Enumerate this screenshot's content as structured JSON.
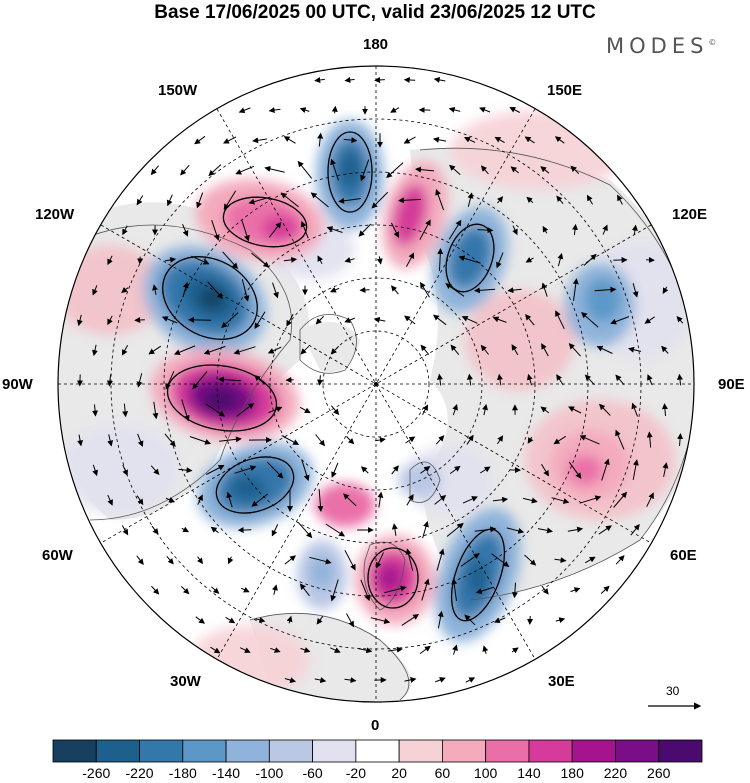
{
  "header": {
    "title": "Base 17/06/2025 00 UTC, valid 23/06/2025 12 UTC",
    "brand": "MODES",
    "brand_mark": "©"
  },
  "map": {
    "projection": "north polar stereographic",
    "longitude_labels": {
      "top": "180",
      "top_left": "150W",
      "top_right": "150E",
      "upper_left": "120W",
      "upper_right": "120E",
      "left": "90W",
      "right": "90E",
      "lower_left": "60W",
      "lower_right": "60E",
      "bottom_left": "30W",
      "bottom_right": "30E",
      "bottom": "0"
    },
    "vector_reference": {
      "value": "30"
    },
    "colors": {
      "land": "#e8e8e8",
      "negative_strong": "#1c4f7a",
      "positive_strong": "#4b0a6e"
    }
  },
  "colorbar": {
    "labels": [
      "-260",
      "-220",
      "-180",
      "-140",
      "-100",
      "-60",
      "-20",
      "20",
      "60",
      "100",
      "140",
      "180",
      "220",
      "260"
    ],
    "colors": [
      "#173f5f",
      "#1d5f8d",
      "#3477ab",
      "#5b98c8",
      "#8fb3da",
      "#bac8e5",
      "#e1e1f0",
      "#ffffff",
      "#f6d2d6",
      "#f3abbd",
      "#ea6fa8",
      "#d63a9a",
      "#a5148e",
      "#7a0e86",
      "#4b0a6e"
    ]
  }
}
